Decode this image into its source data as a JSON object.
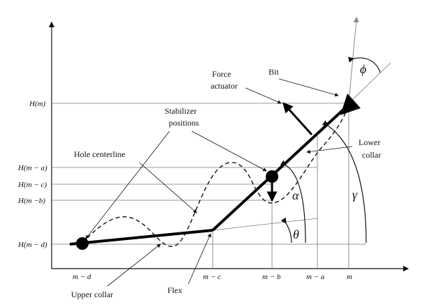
{
  "labels": {
    "bit": "Bit",
    "force_actuator_1": "Force",
    "force_actuator_2": "actuator",
    "stabilizer_1": "Stabilizer",
    "stabilizer_2": "positions",
    "hole_centerline": "Hole  centerline",
    "lower_collar_1": "Lower",
    "lower_collar_2": "collar",
    "upper_collar": "Upper collar",
    "flex": "Flex"
  },
  "y_ticks": [
    "H(m)",
    "H(m − a)",
    "H(m − c)",
    "H(m −b)",
    "H(m − d)"
  ],
  "x_ticks": [
    "m − d",
    "m − c",
    "m − b",
    "m − a",
    "m"
  ],
  "angles": {
    "phi": "ϕ",
    "gamma": "γ",
    "alpha": "α",
    "theta": "θ"
  }
}
